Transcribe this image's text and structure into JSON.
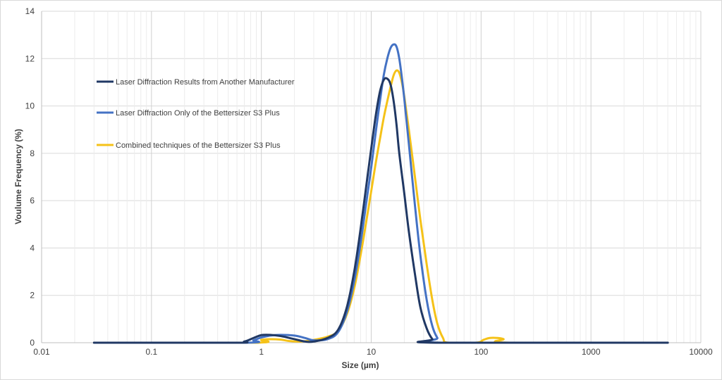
{
  "chart_data": {
    "type": "line",
    "x_scale": "log",
    "xlim": [
      0.01,
      10000
    ],
    "ylim": [
      0,
      14
    ],
    "grid": true,
    "legend_position": "top-left",
    "xlabel": "Size (µm)",
    "ylabel": "Voulume Frequency (%)",
    "x_tick_labels": [
      "0.01",
      "0.1",
      "1",
      "10",
      "100",
      "1000",
      "10000"
    ],
    "y_tick_labels": [
      "0",
      "2",
      "4",
      "6",
      "8",
      "10",
      "12",
      "14"
    ],
    "series": [
      {
        "name": "Laser Diffraction Results from Another Manufacturer",
        "color": "#203864",
        "x": [
          0.03,
          0.55,
          0.7,
          0.85,
          1.0,
          1.2,
          1.5,
          2.0,
          2.5,
          3.0,
          4.0,
          5.0,
          6.0,
          7.0,
          8.0,
          9.0,
          10.0,
          11.0,
          12.0,
          13.0,
          14.0,
          15.0,
          16.0,
          17.0,
          18.0,
          20.0,
          22.0,
          25.0,
          28.0,
          32.0,
          36.0,
          40.0,
          5000
        ],
        "y": [
          0,
          0,
          0.05,
          0.2,
          0.32,
          0.33,
          0.28,
          0.15,
          0.05,
          0.05,
          0.2,
          0.55,
          1.5,
          3.0,
          4.8,
          6.6,
          8.2,
          9.6,
          10.6,
          11.1,
          11.15,
          10.9,
          10.2,
          9.2,
          8.0,
          6.3,
          4.7,
          2.9,
          1.5,
          0.6,
          0.15,
          0,
          0
        ]
      },
      {
        "name": "Laser Diffraction Only of the Bettersizer S3 Plus",
        "color": "#4472c4",
        "x": [
          0.03,
          0.7,
          0.85,
          1.0,
          1.2,
          1.5,
          2.0,
          2.5,
          3.0,
          4.0,
          5.0,
          6.0,
          7.0,
          8.0,
          9.0,
          10.0,
          11.0,
          12.0,
          13.0,
          14.0,
          15.0,
          16.0,
          17.0,
          18.0,
          19.0,
          20.0,
          22.0,
          25.0,
          28.0,
          32.0,
          36.0,
          40.0,
          44.0,
          5000
        ],
        "y": [
          0,
          0,
          0.1,
          0.22,
          0.3,
          0.33,
          0.3,
          0.2,
          0.1,
          0.15,
          0.45,
          1.3,
          2.6,
          4.2,
          5.9,
          7.4,
          8.9,
          10.2,
          11.3,
          12.0,
          12.45,
          12.6,
          12.5,
          12.0,
          11.2,
          10.3,
          8.4,
          5.8,
          3.7,
          1.8,
          0.7,
          0.2,
          0,
          0
        ]
      },
      {
        "name": "Combined techniques of the Bettersizer S3 Plus",
        "color": "#f5c218",
        "x": [
          0.03,
          0.85,
          1.0,
          1.2,
          1.5,
          1.8,
          2.2,
          2.6,
          3.0,
          4.0,
          5.0,
          6.0,
          7.0,
          8.0,
          9.0,
          10.0,
          11.0,
          12.0,
          13.0,
          14.0,
          15.0,
          16.0,
          17.0,
          18.0,
          19.0,
          20.0,
          22.0,
          25.0,
          28.0,
          32.0,
          36.0,
          40.0,
          45.0,
          50.0,
          90.0,
          105.0,
          120.0,
          140.0,
          160.0,
          180.0,
          5000
        ],
        "y": [
          0,
          0,
          0.12,
          0.15,
          0.13,
          0.07,
          0.05,
          0.07,
          0.12,
          0.25,
          0.5,
          1.2,
          2.3,
          3.7,
          5.1,
          6.4,
          7.6,
          8.6,
          9.5,
          10.2,
          10.8,
          11.3,
          11.5,
          11.4,
          11.0,
          10.4,
          9.0,
          7.0,
          5.2,
          3.3,
          1.8,
          0.8,
          0.2,
          0,
          0,
          0.12,
          0.2,
          0.2,
          0.15,
          0,
          0
        ]
      }
    ]
  }
}
